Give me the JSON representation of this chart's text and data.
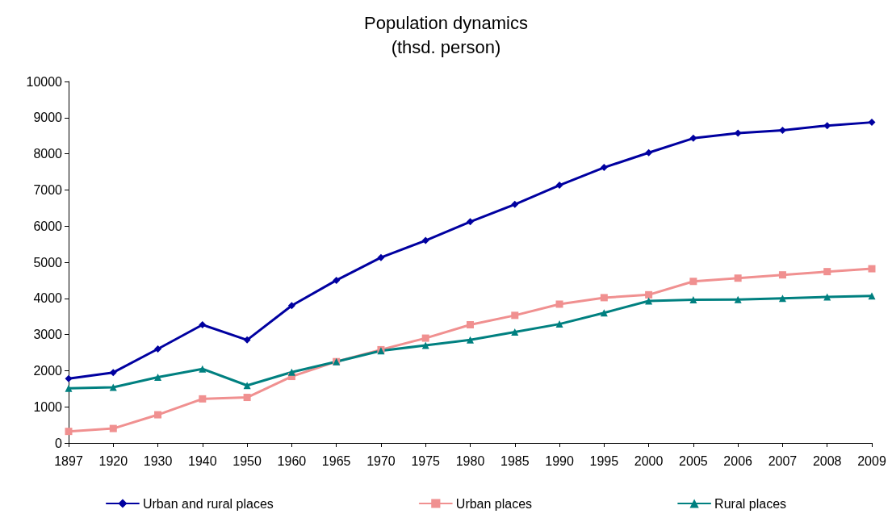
{
  "chart_data": {
    "type": "line",
    "title": "Population dynamics\n(thsd. person)",
    "categories": [
      "1897",
      "1920",
      "1930",
      "1940",
      "1950",
      "1960",
      "1965",
      "1970",
      "1975",
      "1980",
      "1985",
      "1990",
      "1995",
      "2000",
      "2005",
      "2006",
      "2007",
      "2008",
      "2009"
    ],
    "series": [
      {
        "name": "Urban and rural places",
        "color": "#0000a0",
        "marker": "diamond",
        "values": [
          1780,
          1950,
          2600,
          3270,
          2850,
          3800,
          4500,
          5130,
          5600,
          6120,
          6600,
          7130,
          7620,
          8030,
          8430,
          8570,
          8650,
          8780,
          8870
        ]
      },
      {
        "name": "Urban places",
        "color": "#f09090",
        "marker": "square",
        "values": [
          320,
          400,
          780,
          1220,
          1260,
          1840,
          2250,
          2580,
          2900,
          3270,
          3530,
          3840,
          4020,
          4100,
          4470,
          4560,
          4650,
          4740,
          4820
        ]
      },
      {
        "name": "Rural places",
        "color": "#008080",
        "marker": "triangle",
        "values": [
          1510,
          1540,
          1820,
          2050,
          1590,
          1960,
          2250,
          2550,
          2700,
          2850,
          3070,
          3290,
          3600,
          3930,
          3960,
          3970,
          4000,
          4040,
          4070
        ]
      }
    ],
    "ylim": [
      0,
      10000
    ],
    "yticks": [
      0,
      1000,
      2000,
      3000,
      4000,
      5000,
      6000,
      7000,
      8000,
      9000,
      10000
    ],
    "grid": false,
    "legend": "bottom",
    "line_style": "solid"
  }
}
